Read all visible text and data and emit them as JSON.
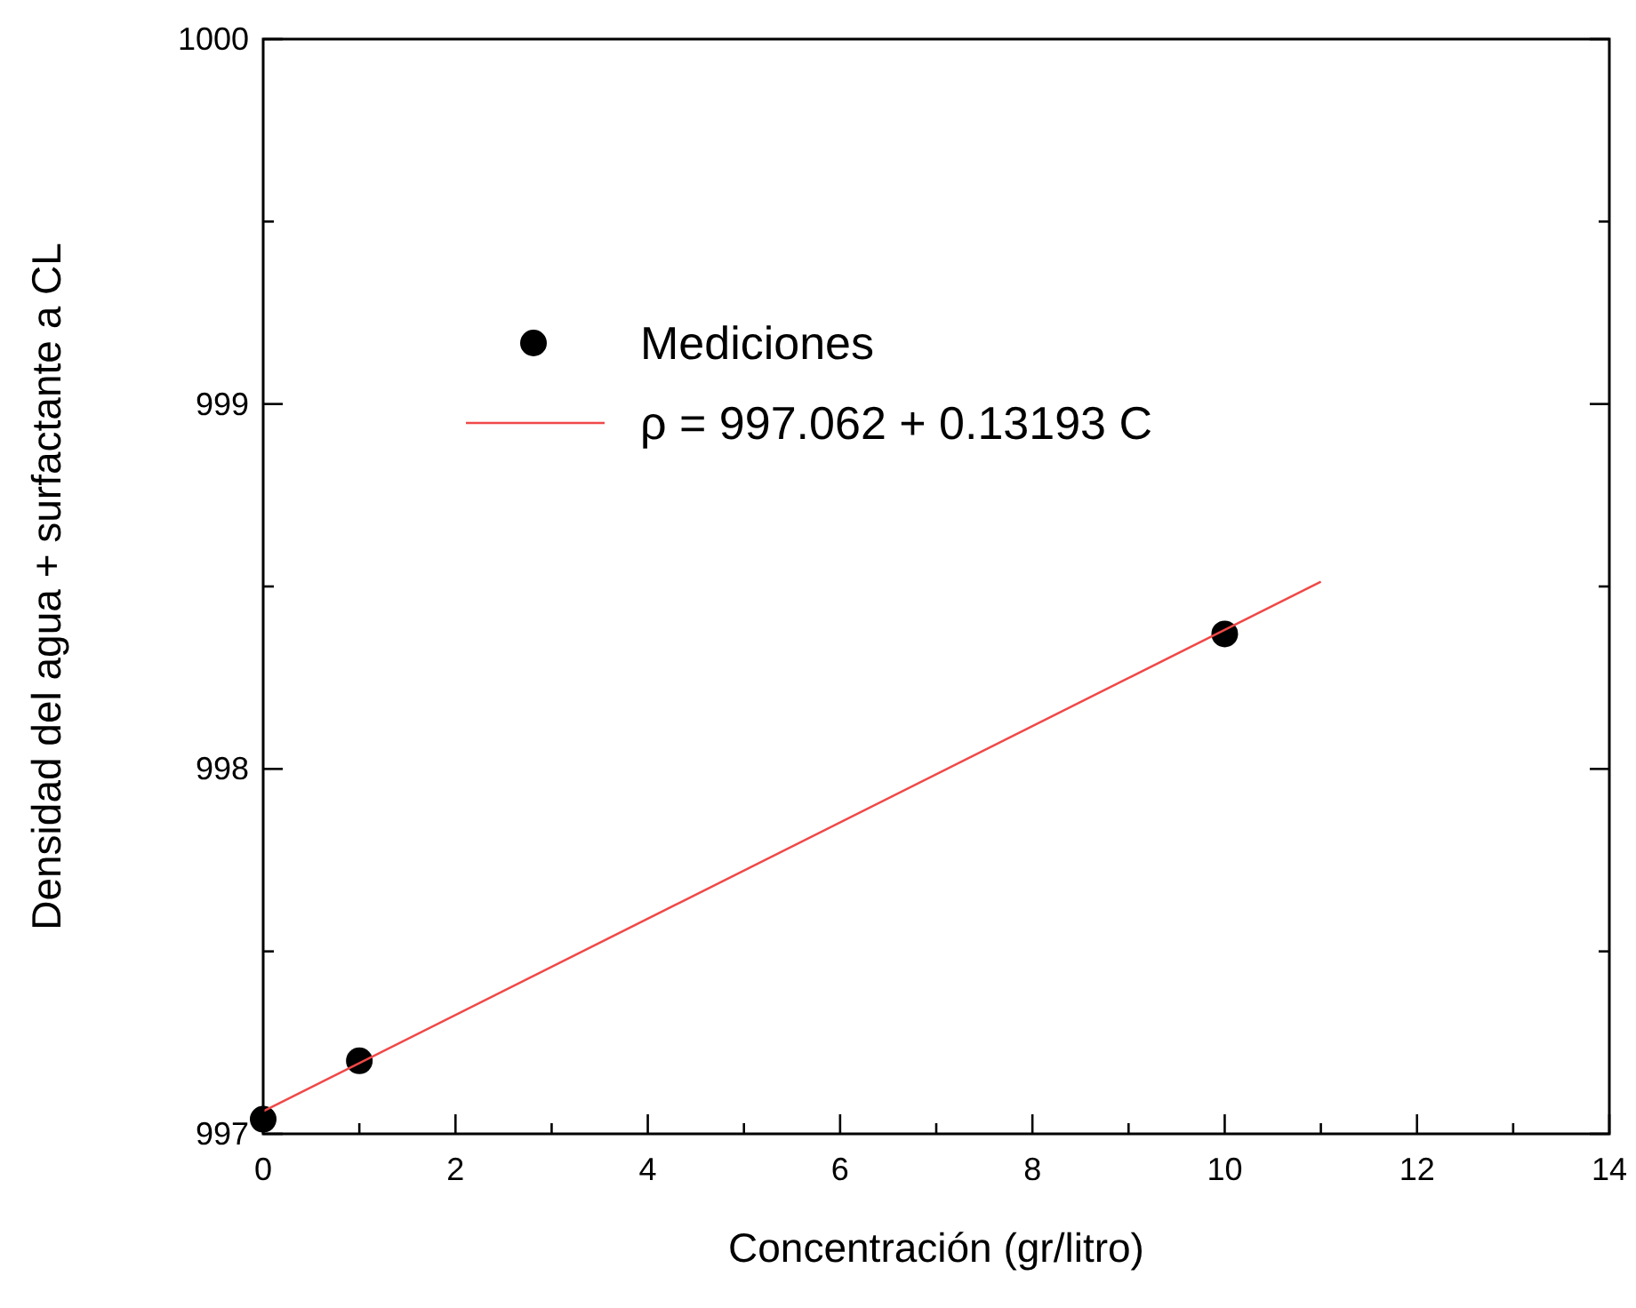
{
  "chart_data": {
    "type": "scatter",
    "xlabel": "Concentración (gr/litro)",
    "ylabel": "Densidad del agua + surfactante a CL",
    "xlim": [
      0,
      14
    ],
    "xticks": [
      0,
      {
        "value": 1,
        "label": null
      },
      2,
      {
        "value": 3,
        "label": null
      },
      4,
      {
        "value": 5,
        "label": null
      },
      6,
      {
        "value": 7,
        "label": null
      },
      8,
      {
        "value": 9,
        "label": null
      },
      10,
      {
        "value": 11,
        "label": null
      },
      12,
      {
        "value": 13,
        "label": null
      },
      14
    ],
    "ylim": [
      997,
      1000
    ],
    "yticks": [
      997,
      {
        "value": 997.5,
        "label": null
      },
      998,
      {
        "value": 998.5,
        "label": null
      },
      999,
      {
        "value": 999.5,
        "label": null
      },
      1000
    ],
    "legend": "top left",
    "grid": false,
    "series": [
      {
        "name": "Mediciones",
        "type": "scatter",
        "marker": "circle",
        "color": "#000000",
        "x": [
          0,
          1,
          10
        ],
        "values": [
          997.04,
          997.2,
          998.37
        ]
      },
      {
        "name": "ρ = 997.062 + 0.13193 C",
        "type": "line",
        "line_style": "solid",
        "marker": "none",
        "color": "#f04848",
        "x": [
          0,
          11
        ],
        "values": [
          997.062,
          998.513
        ]
      }
    ]
  }
}
